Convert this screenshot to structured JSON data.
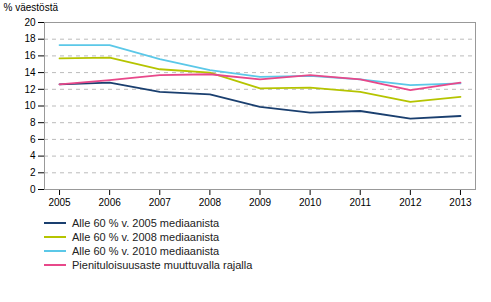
{
  "chart_data": {
    "type": "line",
    "x": [
      2005,
      2006,
      2007,
      2008,
      2009,
      2010,
      2011,
      2012,
      2013
    ],
    "series": [
      {
        "name": "Alle 60 % v. 2005 mediaanista",
        "color": "#1a3f6f",
        "values": [
          12.6,
          12.8,
          11.7,
          11.4,
          9.9,
          9.2,
          9.4,
          8.5,
          8.8
        ]
      },
      {
        "name": "Alle 60 % v. 2008 mediaanista",
        "color": "#b5c400",
        "values": [
          15.7,
          15.8,
          14.4,
          14.0,
          12.1,
          12.2,
          11.7,
          10.5,
          11.1
        ]
      },
      {
        "name": "Alle 60 % v. 2010 mediaanista",
        "color": "#5bc8e8",
        "values": [
          17.3,
          17.3,
          15.6,
          14.3,
          13.5,
          13.6,
          13.2,
          12.5,
          12.7
        ]
      },
      {
        "name": "Pienituloisuusaste muuttuvalla rajalla",
        "color": "#e8488a",
        "values": [
          12.6,
          13.1,
          13.7,
          13.8,
          13.2,
          13.7,
          13.2,
          11.9,
          12.8
        ]
      }
    ],
    "ylabel": "% väestöstä",
    "ylim": [
      0,
      20
    ],
    "yticks": [
      0,
      2,
      4,
      6,
      8,
      10,
      12,
      14,
      16,
      18,
      20
    ],
    "xlim": [
      2004.7,
      2013.3
    ],
    "xticks": [
      2005,
      2006,
      2007,
      2008,
      2009,
      2010,
      2011,
      2012,
      2013
    ],
    "grid": true,
    "legend": "bottom"
  }
}
